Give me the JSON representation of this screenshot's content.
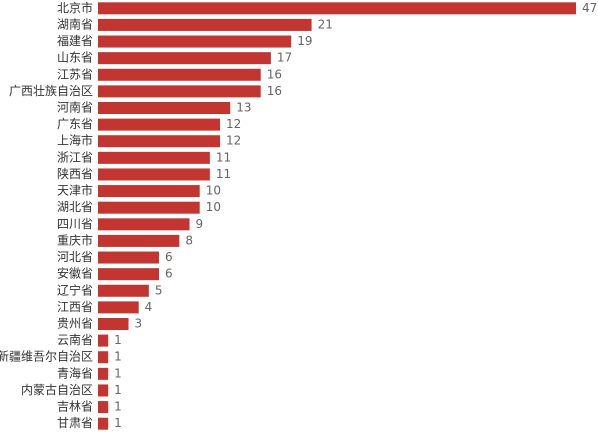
{
  "chart_data": {
    "type": "bar",
    "orientation": "horizontal",
    "color": "#c23531",
    "categories": [
      "北京市",
      "湖南省",
      "福建省",
      "山东省",
      "江苏省",
      "广西壮族自治区",
      "河南省",
      "广东省",
      "上海市",
      "浙江省",
      "陕西省",
      "天津市",
      "湖北省",
      "四川省",
      "重庆市",
      "河北省",
      "安徽省",
      "辽宁省",
      "江西省",
      "贵州省",
      "云南省",
      "新疆维吾尔自治区",
      "青海省",
      "内蒙古自治区",
      "吉林省",
      "甘肃省"
    ],
    "values": [
      47,
      21,
      19,
      17,
      16,
      16,
      13,
      12,
      12,
      11,
      11,
      10,
      10,
      9,
      8,
      6,
      6,
      5,
      4,
      3,
      1,
      1,
      1,
      1,
      1,
      1
    ]
  }
}
